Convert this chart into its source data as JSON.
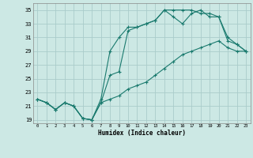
{
  "title": "",
  "xlabel": "Humidex (Indice chaleur)",
  "bg_color": "#cce8e4",
  "grid_color": "#aaccca",
  "line_color": "#1a7a6e",
  "xlim": [
    -0.5,
    23.5
  ],
  "ylim": [
    18.5,
    36
  ],
  "xticks": [
    0,
    1,
    2,
    3,
    4,
    5,
    6,
    7,
    8,
    9,
    10,
    11,
    12,
    13,
    14,
    15,
    16,
    17,
    18,
    19,
    20,
    21,
    22,
    23
  ],
  "yticks": [
    19,
    21,
    23,
    25,
    27,
    29,
    31,
    33,
    35
  ],
  "line1_x": [
    0,
    1,
    2,
    3,
    4,
    5,
    6,
    7,
    8,
    9,
    10,
    11,
    12,
    13,
    14,
    15,
    16,
    17,
    18,
    19,
    20,
    21,
    22,
    23
  ],
  "line1_y": [
    22,
    21.5,
    20.5,
    21.5,
    21,
    19.2,
    19.0,
    21.5,
    25.5,
    26,
    32,
    32.5,
    33,
    33.5,
    35,
    35,
    35,
    35,
    34.5,
    34.5,
    34,
    30.5,
    30,
    29
  ],
  "line2_x": [
    0,
    1,
    2,
    3,
    4,
    5,
    6,
    7,
    8,
    9,
    10,
    11,
    12,
    13,
    14,
    15,
    16,
    17,
    18,
    19,
    20,
    21,
    22,
    23
  ],
  "line2_y": [
    22,
    21.5,
    20.5,
    21.5,
    21,
    19.2,
    19.0,
    22,
    29,
    31,
    32.5,
    32.5,
    33,
    33.5,
    35,
    34,
    33,
    34.5,
    35,
    34,
    34,
    31,
    30,
    29
  ],
  "line3_x": [
    0,
    1,
    2,
    3,
    4,
    5,
    6,
    7,
    8,
    9,
    10,
    11,
    12,
    13,
    14,
    15,
    16,
    17,
    18,
    19,
    20,
    21,
    22,
    23
  ],
  "line3_y": [
    22,
    21.5,
    20.5,
    21.5,
    21,
    19.2,
    19.0,
    21.5,
    22,
    22.5,
    23.5,
    24,
    24.5,
    25.5,
    26.5,
    27.5,
    28.5,
    29,
    29.5,
    30,
    30.5,
    29.5,
    29,
    29
  ]
}
